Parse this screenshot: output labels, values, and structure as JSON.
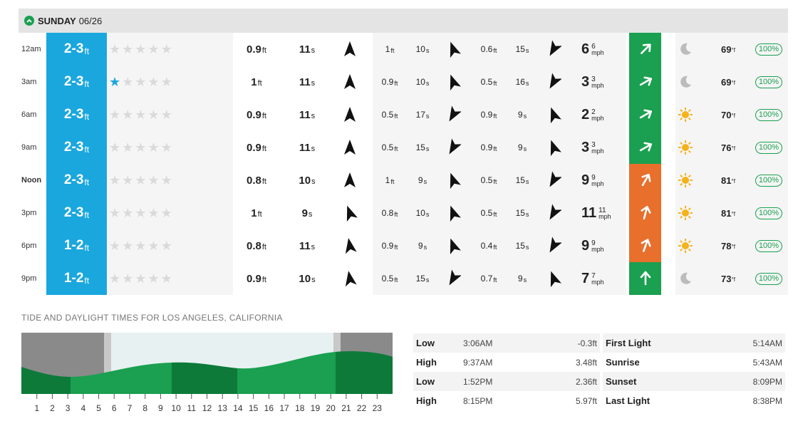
{
  "day": {
    "name": "SUNDAY",
    "date": "06/26"
  },
  "colors": {
    "surf": "#1aa7de",
    "green": "#1aa050",
    "orange": "#e86f2c"
  },
  "rows": [
    {
      "time": "12am",
      "bold": false,
      "surf": "2-3",
      "surf_unit": "ft",
      "stars": 0,
      "s1": {
        "h": "0.9",
        "p": "11",
        "dir": 0
      },
      "s2": {
        "h": "1",
        "p": "10",
        "dir": -20
      },
      "s3": {
        "h": "0.6",
        "p": "15",
        "dir": 210
      },
      "wind": {
        "speed": "6",
        "gust": "6",
        "unit": "mph",
        "dir": 45,
        "rating": "green"
      },
      "weather": "moon-icon",
      "temp": "69",
      "prob": "100%"
    },
    {
      "time": "3am",
      "bold": false,
      "surf": "2-3",
      "surf_unit": "ft",
      "stars": 1,
      "s1": {
        "h": "1",
        "p": "11",
        "dir": 0
      },
      "s2": {
        "h": "0.9",
        "p": "10",
        "dir": -20
      },
      "s3": {
        "h": "0.5",
        "p": "16",
        "dir": 210
      },
      "wind": {
        "speed": "3",
        "gust": "3",
        "unit": "mph",
        "dir": 60,
        "rating": "green"
      },
      "weather": "moon-icon",
      "temp": "69",
      "prob": "100%"
    },
    {
      "time": "6am",
      "bold": false,
      "surf": "2-3",
      "surf_unit": "ft",
      "stars": 0,
      "s1": {
        "h": "0.9",
        "p": "11",
        "dir": 0
      },
      "s2": {
        "h": "0.5",
        "p": "17",
        "dir": 210
      },
      "s3": {
        "h": "0.9",
        "p": "9",
        "dir": -20
      },
      "wind": {
        "speed": "2",
        "gust": "2",
        "unit": "mph",
        "dir": 60,
        "rating": "green"
      },
      "weather": "sun-icon",
      "temp": "70",
      "prob": "100%"
    },
    {
      "time": "9am",
      "bold": false,
      "surf": "2-3",
      "surf_unit": "ft",
      "stars": 0,
      "s1": {
        "h": "0.9",
        "p": "11",
        "dir": 0
      },
      "s2": {
        "h": "0.5",
        "p": "15",
        "dir": 210
      },
      "s3": {
        "h": "0.9",
        "p": "9",
        "dir": -20
      },
      "wind": {
        "speed": "3",
        "gust": "3",
        "unit": "mph",
        "dir": 60,
        "rating": "green"
      },
      "weather": "sun-icon",
      "temp": "76",
      "prob": "100%"
    },
    {
      "time": "Noon",
      "bold": true,
      "surf": "2-3",
      "surf_unit": "ft",
      "stars": 0,
      "s1": {
        "h": "0.8",
        "p": "10",
        "dir": 0
      },
      "s2": {
        "h": "1",
        "p": "9",
        "dir": -20
      },
      "s3": {
        "h": "0.5",
        "p": "15",
        "dir": 210
      },
      "wind": {
        "speed": "9",
        "gust": "9",
        "unit": "mph",
        "dir": 30,
        "rating": "orange"
      },
      "weather": "sun-icon",
      "temp": "81",
      "prob": "100%"
    },
    {
      "time": "3pm",
      "bold": false,
      "surf": "2-3",
      "surf_unit": "ft",
      "stars": 0,
      "s1": {
        "h": "1",
        "p": "9",
        "dir": -20
      },
      "s2": {
        "h": "0.8",
        "p": "10",
        "dir": -20
      },
      "s3": {
        "h": "0.5",
        "p": "15",
        "dir": 210
      },
      "wind": {
        "speed": "11",
        "gust": "11",
        "unit": "mph",
        "dir": 15,
        "rating": "orange"
      },
      "weather": "sun-icon",
      "temp": "81",
      "prob": "100%"
    },
    {
      "time": "6pm",
      "bold": false,
      "surf": "1-2",
      "surf_unit": "ft",
      "stars": 0,
      "s1": {
        "h": "0.8",
        "p": "11",
        "dir": -10
      },
      "s2": {
        "h": "0.9",
        "p": "9",
        "dir": -20
      },
      "s3": {
        "h": "0.4",
        "p": "15",
        "dir": 210
      },
      "wind": {
        "speed": "9",
        "gust": "9",
        "unit": "mph",
        "dir": 20,
        "rating": "orange"
      },
      "weather": "sun-icon",
      "temp": "78",
      "prob": "100%"
    },
    {
      "time": "9pm",
      "bold": false,
      "surf": "1-2",
      "surf_unit": "ft",
      "stars": 0,
      "s1": {
        "h": "0.9",
        "p": "10",
        "dir": -10
      },
      "s2": {
        "h": "0.5",
        "p": "15",
        "dir": 210
      },
      "s3": {
        "h": "0.7",
        "p": "9",
        "dir": -20
      },
      "wind": {
        "speed": "7",
        "gust": "7",
        "unit": "mph",
        "dir": 0,
        "rating": "green"
      },
      "weather": "moon-icon",
      "temp": "73",
      "prob": "100%"
    }
  ],
  "tide": {
    "title": "TIDE AND DAYLIGHT TIMES FOR LOS ANGELES, CALIFORNIA",
    "hours": [
      "1",
      "2",
      "3",
      "4",
      "5",
      "6",
      "7",
      "8",
      "9",
      "10",
      "11",
      "12",
      "13",
      "14",
      "15",
      "16",
      "17",
      "18",
      "19",
      "20",
      "21",
      "22",
      "23"
    ],
    "entries": [
      {
        "type": "Low",
        "time": "3:06AM",
        "height": "-0.3ft"
      },
      {
        "type": "High",
        "time": "9:37AM",
        "height": "3.48ft"
      },
      {
        "type": "Low",
        "time": "1:52PM",
        "height": "2.36ft"
      },
      {
        "type": "High",
        "time": "8:15PM",
        "height": "5.97ft"
      }
    ],
    "sun": [
      {
        "label": "First Light",
        "time": "5:14AM"
      },
      {
        "label": "Sunrise",
        "time": "5:43AM"
      },
      {
        "label": "Sunset",
        "time": "8:09PM"
      },
      {
        "label": "Last Light",
        "time": "8:38PM"
      }
    ]
  }
}
